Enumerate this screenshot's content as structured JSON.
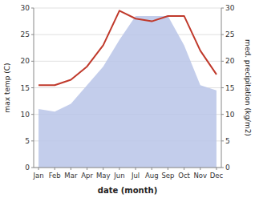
{
  "chart_data": {
    "type": "line",
    "xlabel": "date (month)",
    "ylabel": "max temp (C)",
    "y2label": "med. precipitation (kg/m2)",
    "categories": [
      "Jan",
      "Feb",
      "Mar",
      "Apr",
      "May",
      "Jun",
      "Jul",
      "Aug",
      "Sep",
      "Oct",
      "Nov",
      "Dec"
    ],
    "series": [
      {
        "type": "area",
        "color": "#b8c4e8",
        "axis": "y2",
        "values": [
          11.0,
          10.5,
          12.0,
          15.5,
          19.0,
          24.0,
          28.5,
          28.5,
          28.5,
          23.0,
          15.5,
          14.5
        ]
      },
      {
        "type": "line",
        "color": "#c0392b",
        "values": [
          15.5,
          15.5,
          16.5,
          19.0,
          23.0,
          29.5,
          28.0,
          27.5,
          28.5,
          28.5,
          22.0,
          17.5
        ]
      }
    ],
    "ylim": [
      0,
      30
    ],
    "yticks": [
      0,
      5,
      10,
      15,
      20,
      25,
      30
    ],
    "y2lim": [
      0,
      30
    ],
    "y2ticks": [
      0,
      5,
      10,
      15,
      20,
      25,
      30
    ],
    "grid": true
  }
}
